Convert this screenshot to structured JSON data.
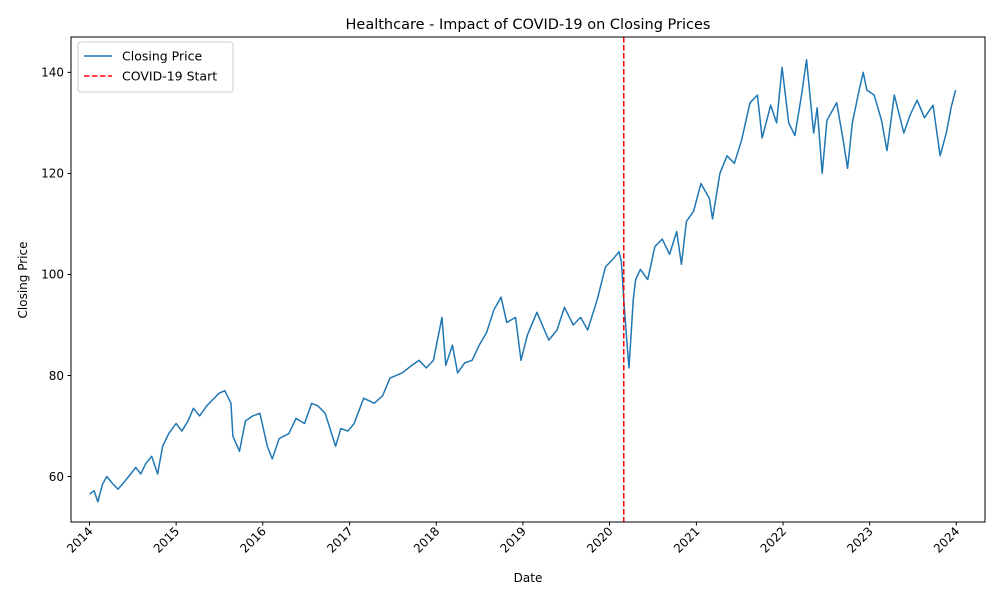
{
  "chart_data": {
    "type": "line",
    "title": "Healthcare - Impact of COVID-19 on Closing Prices",
    "xlabel": "Date",
    "ylabel": "Closing Price",
    "xlim": [
      "2013-10-15",
      "2024-05-01"
    ],
    "ylim": [
      51,
      147
    ],
    "x_ticks": [
      "2014",
      "2015",
      "2016",
      "2017",
      "2018",
      "2019",
      "2020",
      "2021",
      "2022",
      "2023",
      "2024"
    ],
    "y_ticks": [
      60,
      80,
      100,
      120,
      140
    ],
    "grid": false,
    "legend_position": "upper-left",
    "series": [
      {
        "name": "Closing Price",
        "color": "#1f77b4",
        "points": [
          [
            "2014-01-02",
            56.5
          ],
          [
            "2014-01-20",
            57.2
          ],
          [
            "2014-02-05",
            55.0
          ],
          [
            "2014-02-25",
            58.5
          ],
          [
            "2014-03-15",
            60.0
          ],
          [
            "2014-04-10",
            58.5
          ],
          [
            "2014-05-01",
            57.5
          ],
          [
            "2014-05-20",
            58.5
          ],
          [
            "2014-06-15",
            60.0
          ],
          [
            "2014-07-15",
            61.8
          ],
          [
            "2014-08-05",
            60.5
          ],
          [
            "2014-08-25",
            62.5
          ],
          [
            "2014-09-20",
            64.0
          ],
          [
            "2014-10-15",
            60.5
          ],
          [
            "2014-11-05",
            66.0
          ],
          [
            "2014-12-01",
            68.5
          ],
          [
            "2015-01-01",
            70.5
          ],
          [
            "2015-01-25",
            69.0
          ],
          [
            "2015-02-20",
            71.0
          ],
          [
            "2015-03-15",
            73.5
          ],
          [
            "2015-04-10",
            72.0
          ],
          [
            "2015-05-10",
            74.0
          ],
          [
            "2015-06-10",
            75.5
          ],
          [
            "2015-07-01",
            76.5
          ],
          [
            "2015-07-25",
            77.0
          ],
          [
            "2015-08-20",
            74.5
          ],
          [
            "2015-08-28",
            68.0
          ],
          [
            "2015-09-25",
            65.0
          ],
          [
            "2015-10-20",
            71.0
          ],
          [
            "2015-11-20",
            72.0
          ],
          [
            "2015-12-20",
            72.5
          ],
          [
            "2016-01-20",
            66.0
          ],
          [
            "2016-02-10",
            63.5
          ],
          [
            "2016-03-10",
            67.5
          ],
          [
            "2016-04-20",
            68.5
          ],
          [
            "2016-05-20",
            71.5
          ],
          [
            "2016-06-25",
            70.5
          ],
          [
            "2016-07-25",
            74.5
          ],
          [
            "2016-08-20",
            74.0
          ],
          [
            "2016-09-20",
            72.5
          ],
          [
            "2016-11-03",
            66.0
          ],
          [
            "2016-11-25",
            69.5
          ],
          [
            "2016-12-25",
            69.0
          ],
          [
            "2017-01-20",
            70.5
          ],
          [
            "2017-03-01",
            75.5
          ],
          [
            "2017-04-15",
            74.5
          ],
          [
            "2017-05-20",
            76.0
          ],
          [
            "2017-06-20",
            79.5
          ],
          [
            "2017-08-10",
            80.5
          ],
          [
            "2017-09-20",
            82.0
          ],
          [
            "2017-10-20",
            83.0
          ],
          [
            "2017-11-20",
            81.5
          ],
          [
            "2017-12-20",
            83.0
          ],
          [
            "2018-01-25",
            91.5
          ],
          [
            "2018-02-10",
            82.0
          ],
          [
            "2018-03-10",
            86.0
          ],
          [
            "2018-04-01",
            80.5
          ],
          [
            "2018-05-01",
            82.5
          ],
          [
            "2018-06-01",
            83.0
          ],
          [
            "2018-07-01",
            86.0
          ],
          [
            "2018-08-01",
            88.5
          ],
          [
            "2018-09-01",
            93.0
          ],
          [
            "2018-10-01",
            95.5
          ],
          [
            "2018-10-25",
            90.5
          ],
          [
            "2018-12-01",
            91.5
          ],
          [
            "2018-12-24",
            83.0
          ],
          [
            "2019-01-20",
            88.0
          ],
          [
            "2019-03-01",
            92.5
          ],
          [
            "2019-04-20",
            87.0
          ],
          [
            "2019-05-25",
            89.0
          ],
          [
            "2019-06-25",
            93.5
          ],
          [
            "2019-08-01",
            90.0
          ],
          [
            "2019-09-01",
            91.5
          ],
          [
            "2019-10-01",
            89.0
          ],
          [
            "2019-11-10",
            95.0
          ],
          [
            "2019-12-15",
            101.5
          ],
          [
            "2020-01-15",
            103.0
          ],
          [
            "2020-02-10",
            104.5
          ],
          [
            "2020-02-20",
            102.5
          ],
          [
            "2020-03-01",
            95.0
          ],
          [
            "2020-03-12",
            88.0
          ],
          [
            "2020-03-23",
            81.5
          ],
          [
            "2020-04-10",
            95.0
          ],
          [
            "2020-04-20",
            99.0
          ],
          [
            "2020-05-10",
            101.0
          ],
          [
            "2020-06-10",
            99.0
          ],
          [
            "2020-07-10",
            105.5
          ],
          [
            "2020-08-10",
            107.0
          ],
          [
            "2020-09-10",
            104.0
          ],
          [
            "2020-10-10",
            108.5
          ],
          [
            "2020-10-30",
            102.0
          ],
          [
            "2020-11-20",
            110.5
          ],
          [
            "2020-12-20",
            112.5
          ],
          [
            "2021-01-20",
            118.0
          ],
          [
            "2021-02-25",
            115.0
          ],
          [
            "2021-03-10",
            111.0
          ],
          [
            "2021-04-10",
            120.0
          ],
          [
            "2021-05-10",
            123.5
          ],
          [
            "2021-06-10",
            122.0
          ],
          [
            "2021-07-10",
            126.5
          ],
          [
            "2021-08-15",
            134.0
          ],
          [
            "2021-09-15",
            135.5
          ],
          [
            "2021-10-05",
            127.0
          ],
          [
            "2021-11-10",
            133.5
          ],
          [
            "2021-12-05",
            130.0
          ],
          [
            "2021-12-28",
            141.0
          ],
          [
            "2022-01-25",
            130.0
          ],
          [
            "2022-02-20",
            127.5
          ],
          [
            "2022-03-20",
            135.5
          ],
          [
            "2022-04-10",
            142.5
          ],
          [
            "2022-05-10",
            128.0
          ],
          [
            "2022-05-25",
            133.0
          ],
          [
            "2022-06-15",
            120.0
          ],
          [
            "2022-07-05",
            130.5
          ],
          [
            "2022-08-15",
            134.0
          ],
          [
            "2022-09-10",
            127.0
          ],
          [
            "2022-09-30",
            121.0
          ],
          [
            "2022-10-20",
            130.0
          ],
          [
            "2022-11-20",
            137.0
          ],
          [
            "2022-12-05",
            140.0
          ],
          [
            "2022-12-20",
            136.5
          ],
          [
            "2023-01-20",
            135.5
          ],
          [
            "2023-02-20",
            130.5
          ],
          [
            "2023-03-15",
            124.5
          ],
          [
            "2023-04-15",
            135.5
          ],
          [
            "2023-05-25",
            128.0
          ],
          [
            "2023-06-20",
            131.5
          ],
          [
            "2023-07-20",
            134.5
          ],
          [
            "2023-08-20",
            131.0
          ],
          [
            "2023-09-25",
            133.5
          ],
          [
            "2023-10-25",
            123.5
          ],
          [
            "2023-11-20",
            128.0
          ],
          [
            "2023-12-10",
            133.0
          ],
          [
            "2023-12-29",
            136.5
          ]
        ]
      },
      {
        "name": "COVID-19 Start",
        "color": "#ff0000",
        "style": "dashed",
        "x_value": "2020-03-01"
      }
    ]
  }
}
